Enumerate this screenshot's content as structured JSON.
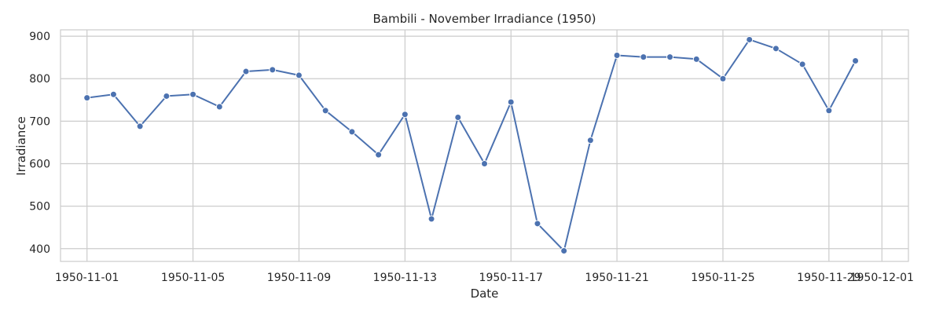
{
  "chart_data": {
    "type": "line",
    "title": "Bambili - November Irradiance (1950)",
    "xlabel": "Date",
    "ylabel": "Irradiance",
    "x_tick_labels": [
      "1950-11-01",
      "1950-11-05",
      "1950-11-09",
      "1950-11-13",
      "1950-11-17",
      "1950-11-21",
      "1950-11-25",
      "1950-11-29",
      "1950-12-01"
    ],
    "x_ticks": [
      "1950-11-01",
      "1950-11-05",
      "1950-11-09",
      "1950-11-13",
      "1950-11-17",
      "1950-11-21",
      "1950-11-25",
      "1950-11-29",
      "1950-12-01"
    ],
    "y_ticks": [
      400,
      500,
      600,
      700,
      800,
      900
    ],
    "xlim": [
      "1950-10-31",
      "1950-12-02"
    ],
    "ylim": [
      370,
      915
    ],
    "grid": true,
    "series_color": "#4c72b0",
    "x": [
      "1950-11-01",
      "1950-11-02",
      "1950-11-03",
      "1950-11-04",
      "1950-11-05",
      "1950-11-06",
      "1950-11-07",
      "1950-11-08",
      "1950-11-09",
      "1950-11-10",
      "1950-11-11",
      "1950-11-12",
      "1950-11-13",
      "1950-11-14",
      "1950-11-15",
      "1950-11-16",
      "1950-11-17",
      "1950-11-18",
      "1950-11-19",
      "1950-11-20",
      "1950-11-21",
      "1950-11-22",
      "1950-11-23",
      "1950-11-24",
      "1950-11-25",
      "1950-11-26",
      "1950-11-27",
      "1950-11-28",
      "1950-11-29",
      "1950-11-30"
    ],
    "values": [
      755,
      763,
      688,
      759,
      763,
      734,
      817,
      821,
      808,
      725,
      675,
      621,
      716,
      470,
      709,
      600,
      745,
      459,
      395,
      655,
      855,
      851,
      851,
      846,
      800,
      892,
      871,
      834,
      725,
      842
    ]
  }
}
